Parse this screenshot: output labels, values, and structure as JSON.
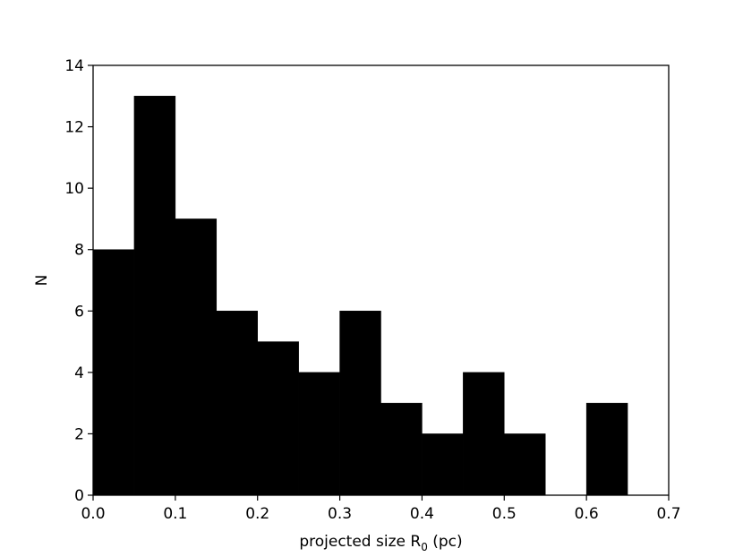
{
  "chart_data": {
    "type": "bar",
    "title": "",
    "xlabel": "projected size R",
    "xlabel_subscript": "0",
    "xlabel_suffix": " (pc)",
    "ylabel": "N",
    "bin_edges": [
      0.0,
      0.05,
      0.1,
      0.15,
      0.2,
      0.25,
      0.3,
      0.35,
      0.4,
      0.45,
      0.5,
      0.55,
      0.6,
      0.65
    ],
    "values": [
      8,
      13,
      9,
      6,
      5,
      4,
      6,
      3,
      2,
      4,
      2,
      0,
      3
    ],
    "xlim": [
      0.0,
      0.7
    ],
    "ylim": [
      0,
      14
    ],
    "xticks": [
      "0.0",
      "0.1",
      "0.2",
      "0.3",
      "0.4",
      "0.5",
      "0.6",
      "0.7"
    ],
    "yticks": [
      "0",
      "2",
      "4",
      "6",
      "8",
      "10",
      "12",
      "14"
    ],
    "bar_color": "#000000",
    "grid": false,
    "legend": "none"
  }
}
